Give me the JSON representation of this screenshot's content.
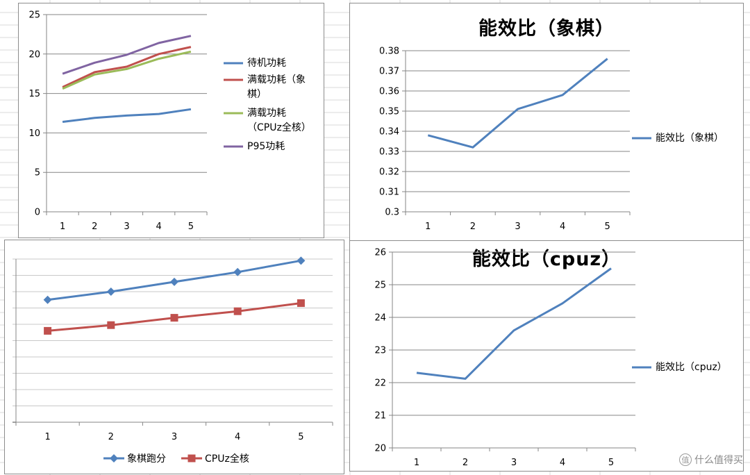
{
  "watermark": {
    "text": "什么值得买",
    "icon_glyph": "值",
    "icon": "zhi-logo-icon"
  },
  "colors": {
    "blue": "#4f81bd",
    "red": "#c0504d",
    "green": "#9bbb59",
    "purple": "#8064a2",
    "grid": "#868686",
    "sheet_grid": "#d9d9d9"
  },
  "chart_data": [
    {
      "type": "line",
      "title": "",
      "x": [
        1,
        2,
        3,
        4,
        5
      ],
      "ylim": [
        0,
        25
      ],
      "yticks": [
        0,
        5,
        10,
        15,
        20,
        25
      ],
      "grid": true,
      "legend_position": "right",
      "series": [
        {
          "name": "待机功耗",
          "color": "#4f81bd",
          "values": [
            11.4,
            11.9,
            12.2,
            12.4,
            13.0
          ]
        },
        {
          "name": "满载功耗（象棋）",
          "legend_lines": [
            "满载功耗（象",
            "棋）"
          ],
          "color": "#c0504d",
          "values": [
            15.8,
            17.7,
            18.4,
            20.0,
            20.9
          ]
        },
        {
          "name": "满载功耗（CPUz全核）",
          "legend_lines": [
            "满载功耗",
            "（CPUz全核）"
          ],
          "color": "#9bbb59",
          "values": [
            15.6,
            17.4,
            18.1,
            19.4,
            20.3
          ]
        },
        {
          "name": "P95功耗",
          "legend_lines": [
            "P95功耗"
          ],
          "color": "#8064a2",
          "values": [
            17.5,
            18.9,
            19.9,
            21.4,
            22.3
          ]
        }
      ]
    },
    {
      "type": "line",
      "title": "能效比（象棋）",
      "x": [
        1,
        2,
        3,
        4,
        5
      ],
      "ylim": [
        0.3,
        0.38
      ],
      "yticks": [
        "0.3",
        "0.31",
        "0.32",
        "0.33",
        "0.34",
        "0.35",
        "0.36",
        "0.37",
        "0.38"
      ],
      "grid": true,
      "legend_position": "right",
      "series": [
        {
          "name": "能效比（象棋）",
          "color": "#4f81bd",
          "values": [
            0.338,
            0.332,
            0.351,
            0.358,
            0.376
          ]
        }
      ]
    },
    {
      "type": "line",
      "title": "",
      "x": [
        1,
        2,
        3,
        4,
        5
      ],
      "ylim": [
        0,
        10
      ],
      "yticks": [],
      "grid": true,
      "legend_position": "bottom",
      "series": [
        {
          "name": "象棋跑分",
          "color": "#4f81bd",
          "marker": "diamond",
          "values": [
            7.5,
            8.0,
            8.6,
            9.2,
            9.9
          ]
        },
        {
          "name": "CPUz全核",
          "color": "#c0504d",
          "marker": "square",
          "values": [
            5.6,
            5.95,
            6.4,
            6.8,
            7.3
          ]
        }
      ]
    },
    {
      "type": "line",
      "title": "能效比（cpuz）",
      "x": [
        1,
        2,
        3,
        4,
        5
      ],
      "ylim": [
        20,
        26
      ],
      "yticks": [
        20,
        21,
        22,
        23,
        24,
        25,
        26
      ],
      "grid": true,
      "legend_position": "right",
      "series": [
        {
          "name": "能效比（cpuz）",
          "color": "#4f81bd",
          "values": [
            22.3,
            22.12,
            23.6,
            24.43,
            25.5
          ]
        }
      ]
    }
  ]
}
